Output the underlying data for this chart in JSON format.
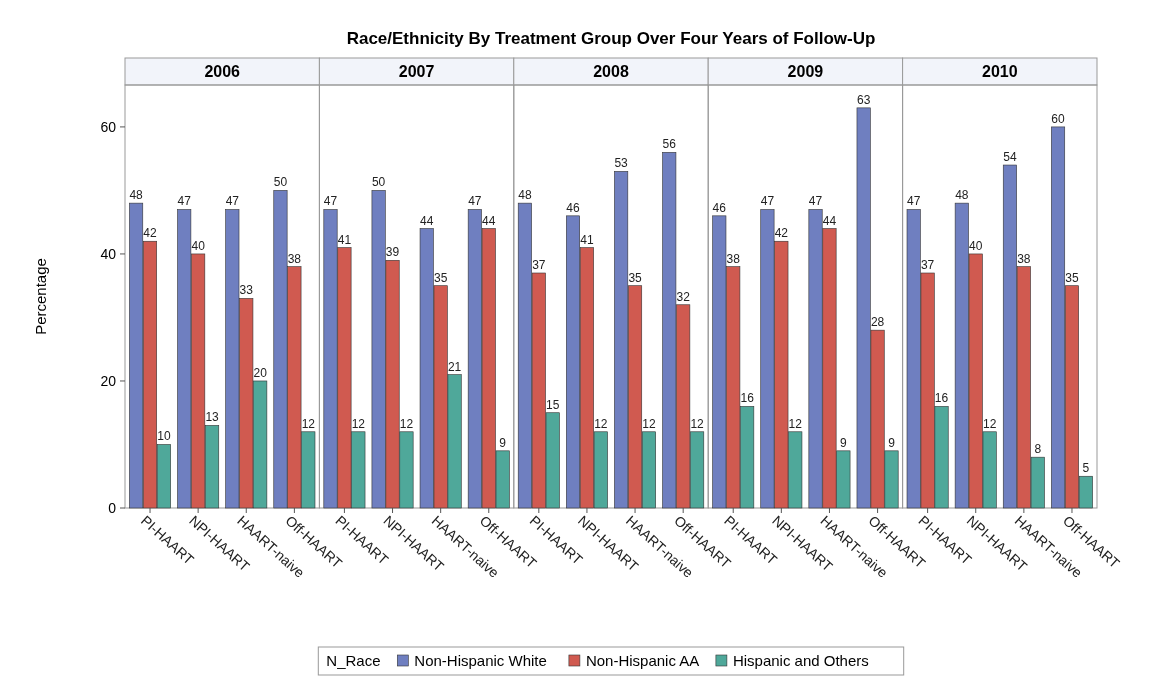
{
  "chart_data": [
    {
      "type": "other",
      "title": "Race/Ethnicity By Treatment Group Over Four Years of Follow-Up"
    },
    {
      "type": "bar",
      "subtitle": "2006",
      "ylabel": "Percentage",
      "categories": [
        "PI-HAART",
        "NPI-HAART",
        "HAART-naive",
        "Off-HAART"
      ],
      "ylim": [
        0,
        66.6
      ],
      "yticks": [
        0,
        20,
        40,
        60
      ],
      "data_labels": true,
      "legend": "bottom",
      "legend_title": "N_Race",
      "series": [
        {
          "name": "Non-Hispanic White",
          "color": "#6f7fc0",
          "values": [
            48,
            47,
            47,
            50
          ]
        },
        {
          "name": "Non-Hispanic AA",
          "color": "#d05a50",
          "values": [
            42,
            40,
            33,
            38
          ]
        },
        {
          "name": "Hispanic and Others",
          "color": "#4fa89a",
          "values": [
            10,
            13,
            20,
            12
          ]
        }
      ]
    },
    {
      "type": "bar",
      "subtitle": "2007",
      "categories": [
        "PI-HAART",
        "NPI-HAART",
        "HAART-naive",
        "Off-HAART"
      ],
      "ylim": [
        0,
        66.6
      ],
      "tick_labels": "x",
      "data_labels": true,
      "series": [
        {
          "color": "#6f7fc0",
          "values": [
            47,
            50,
            44,
            47
          ]
        },
        {
          "color": "#d05a50",
          "values": [
            41,
            39,
            35,
            44
          ]
        },
        {
          "color": "#4fa89a",
          "values": [
            12,
            12,
            21,
            9
          ]
        }
      ]
    },
    {
      "type": "bar",
      "subtitle": "2008",
      "categories": [
        "PI-HAART",
        "NPI-HAART",
        "HAART-naive",
        "Off-HAART"
      ],
      "ylim": [
        0,
        66.6
      ],
      "tick_labels": "x",
      "data_labels": true,
      "series": [
        {
          "color": "#6f7fc0",
          "values": [
            48,
            46,
            53,
            56
          ]
        },
        {
          "color": "#d05a50",
          "values": [
            37,
            41,
            35,
            32
          ]
        },
        {
          "color": "#4fa89a",
          "values": [
            15,
            12,
            12,
            12
          ]
        }
      ]
    },
    {
      "type": "bar",
      "subtitle": "2009",
      "categories": [
        "PI-HAART",
        "NPI-HAART",
        "HAART-naive",
        "Off-HAART"
      ],
      "ylim": [
        0,
        66.6
      ],
      "tick_labels": "x",
      "data_labels": true,
      "series": [
        {
          "color": "#6f7fc0",
          "values": [
            46,
            47,
            47,
            63
          ]
        },
        {
          "color": "#d05a50",
          "values": [
            38,
            42,
            44,
            28
          ]
        },
        {
          "color": "#4fa89a",
          "values": [
            16,
            12,
            9,
            9
          ]
        }
      ]
    },
    {
      "type": "bar",
      "subtitle": "2010",
      "categories": [
        "PI-HAART",
        "NPI-HAART",
        "HAART-naive",
        "Off-HAART"
      ],
      "ylim": [
        0,
        66.6
      ],
      "tick_labels": "x",
      "data_labels": true,
      "series": [
        {
          "color": "#6f7fc0",
          "values": [
            47,
            48,
            54,
            60
          ]
        },
        {
          "color": "#d05a50",
          "values": [
            37,
            40,
            38,
            35
          ]
        },
        {
          "color": "#4fa89a",
          "values": [
            16,
            12,
            8,
            5
          ]
        }
      ]
    }
  ]
}
